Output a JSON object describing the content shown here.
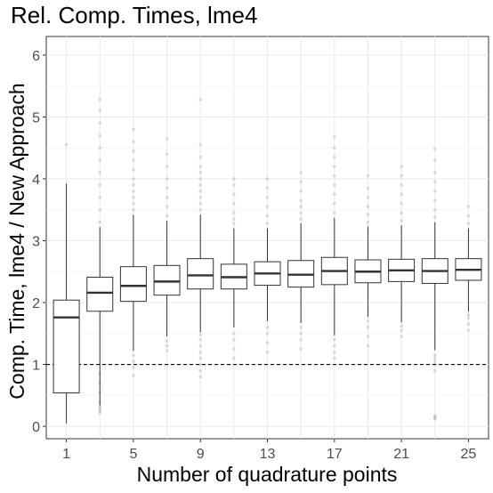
{
  "chart_data": {
    "type": "boxplot",
    "title": "Rel. Comp. Times, lme4",
    "xlabel": "Number of quadrature points",
    "ylabel": "Comp. Time, lme4 / New Approach",
    "ylim": [
      -0.2,
      6.3
    ],
    "y_ticks": [
      0,
      1,
      2,
      3,
      4,
      5,
      6
    ],
    "x_tick_labels": [
      "1",
      "5",
      "9",
      "13",
      "17",
      "21",
      "25"
    ],
    "reference_line": {
      "y": 1,
      "style": "dashed"
    },
    "grid": true,
    "categories": [
      1,
      3,
      5,
      7,
      9,
      11,
      13,
      15,
      17,
      19,
      21,
      23,
      25
    ],
    "boxes": [
      {
        "x": 1,
        "whisker_low": 0.05,
        "q1": 0.54,
        "median": 1.76,
        "q3": 2.04,
        "whisker_high": 3.92,
        "outliers": [
          4.55
        ]
      },
      {
        "x": 3,
        "whisker_low": 0.33,
        "q1": 1.86,
        "median": 2.16,
        "q3": 2.41,
        "whisker_high": 3.22,
        "outliers": [
          0.22,
          0.25,
          0.28,
          0.31,
          0.4,
          0.55,
          0.7,
          0.85,
          3.3,
          3.5,
          3.7,
          3.9,
          4.1,
          4.3,
          4.5,
          4.7,
          4.9,
          5.1,
          5.28
        ]
      },
      {
        "x": 5,
        "whisker_low": 1.22,
        "q1": 2.02,
        "median": 2.27,
        "q3": 2.58,
        "whisker_high": 3.42,
        "outliers": [
          0.82,
          0.95,
          1.05,
          1.15,
          3.5,
          3.6,
          3.7,
          3.8,
          3.9,
          4.0,
          4.15,
          4.3,
          4.45,
          4.6,
          4.8
        ]
      },
      {
        "x": 7,
        "whisker_low": 1.45,
        "q1": 2.12,
        "median": 2.34,
        "q3": 2.6,
        "whisker_high": 3.32,
        "outliers": [
          1.22,
          1.3,
          1.38,
          3.4,
          3.55,
          3.7,
          3.85,
          4.0,
          4.2,
          4.4,
          4.65
        ]
      },
      {
        "x": 9,
        "whisker_low": 1.52,
        "q1": 2.22,
        "median": 2.44,
        "q3": 2.71,
        "whisker_high": 3.42,
        "outliers": [
          0.8,
          0.9,
          1.0,
          1.1,
          1.2,
          1.3,
          1.4,
          1.48,
          3.5,
          3.6,
          3.7,
          3.8,
          3.9,
          4.0,
          4.1,
          4.2,
          4.35,
          4.55,
          5.28
        ]
      },
      {
        "x": 11,
        "whisker_low": 1.6,
        "q1": 2.22,
        "median": 2.41,
        "q3": 2.62,
        "whisker_high": 3.2,
        "outliers": [
          1.1,
          1.25,
          1.4,
          1.5,
          3.28,
          3.35,
          3.45,
          3.6,
          3.75,
          3.9,
          4.0
        ]
      },
      {
        "x": 13,
        "whisker_low": 1.7,
        "q1": 2.28,
        "median": 2.47,
        "q3": 2.66,
        "whisker_high": 3.2,
        "outliers": [
          1.2,
          1.35,
          1.5,
          1.6,
          3.28,
          3.4,
          3.55,
          3.7,
          3.85,
          4.0
        ]
      },
      {
        "x": 15,
        "whisker_low": 1.67,
        "q1": 2.25,
        "median": 2.45,
        "q3": 2.68,
        "whisker_high": 3.28,
        "outliers": [
          1.25,
          1.4,
          1.5,
          1.6,
          3.35,
          3.45,
          3.55,
          3.65,
          3.8,
          3.95,
          4.1
        ]
      },
      {
        "x": 17,
        "whisker_low": 1.47,
        "q1": 2.29,
        "median": 2.51,
        "q3": 2.73,
        "whisker_high": 3.37,
        "outliers": [
          1.1,
          1.2,
          1.3,
          1.4,
          3.45,
          3.6,
          3.75,
          3.9,
          4.05,
          4.2,
          4.35,
          4.5,
          4.68
        ]
      },
      {
        "x": 19,
        "whisker_low": 1.77,
        "q1": 2.32,
        "median": 2.5,
        "q3": 2.69,
        "whisker_high": 3.23,
        "outliers": [
          1.3,
          1.45,
          1.6,
          1.7,
          3.3,
          3.42,
          3.55,
          3.7,
          3.85,
          4.05
        ]
      },
      {
        "x": 21,
        "whisker_low": 1.68,
        "q1": 2.34,
        "median": 2.52,
        "q3": 2.7,
        "whisker_high": 3.25,
        "outliers": [
          1.45,
          1.55,
          1.62,
          3.32,
          3.45,
          3.6,
          3.75,
          3.9,
          4.05,
          4.2
        ]
      },
      {
        "x": 23,
        "whisker_low": 1.23,
        "q1": 2.31,
        "median": 2.51,
        "q3": 2.71,
        "whisker_high": 3.3,
        "outliers": [
          0.12,
          0.14,
          0.17,
          0.9,
          1.0,
          1.05,
          1.1,
          1.15,
          3.38,
          3.5,
          3.65,
          3.8,
          3.95,
          4.1,
          4.3,
          4.48
        ]
      },
      {
        "x": 25,
        "whisker_low": 1.85,
        "q1": 2.36,
        "median": 2.53,
        "q3": 2.71,
        "whisker_high": 3.2,
        "outliers": [
          1.55,
          1.65,
          1.75,
          1.8,
          3.28,
          3.4,
          3.55
        ]
      }
    ]
  }
}
